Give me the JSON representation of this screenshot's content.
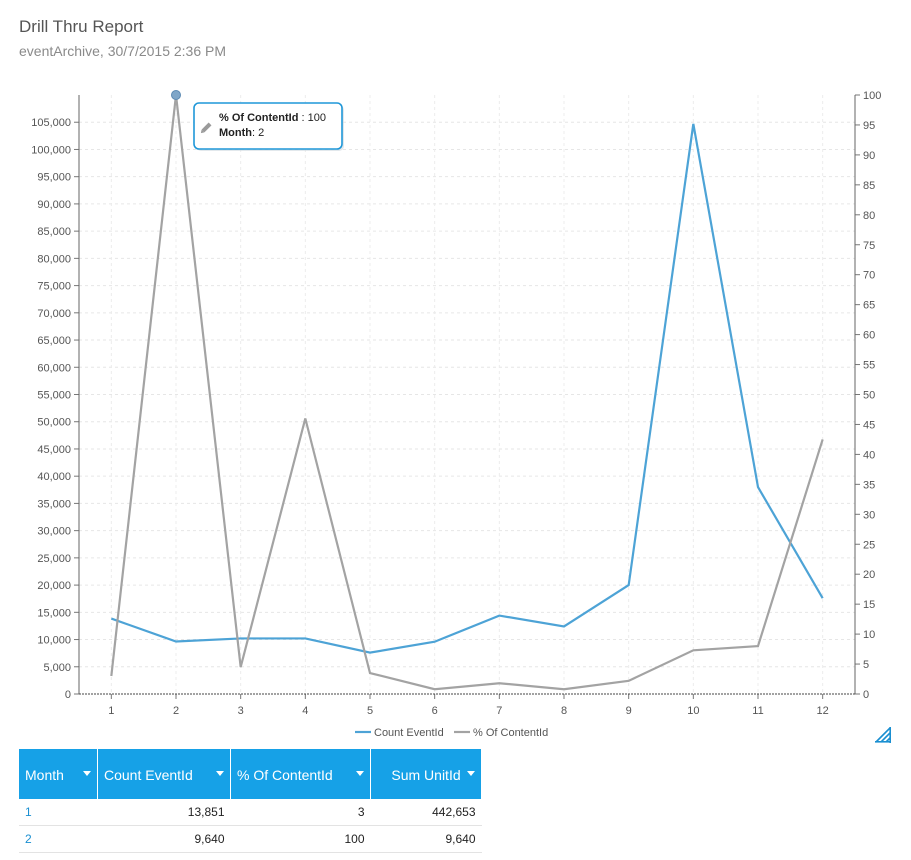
{
  "report": {
    "title": "Drill Thru Report",
    "subtitle": "eventArchive, 30/7/2015 2:36 PM"
  },
  "chart_data": {
    "type": "line",
    "x": [
      "1",
      "2",
      "3",
      "4",
      "5",
      "6",
      "7",
      "8",
      "9",
      "10",
      "11",
      "12"
    ],
    "series": [
      {
        "name": "Count EventId",
        "axis": "left",
        "color": "#4da3d6",
        "values": [
          13851,
          9640,
          10200,
          10200,
          7600,
          9600,
          14400,
          12400,
          20000,
          104700,
          38000,
          17600
        ]
      },
      {
        "name": "% Of ContentId",
        "axis": "right",
        "color": "#a3a3a3",
        "values": [
          3,
          100,
          4.5,
          46,
          3.5,
          0.8,
          1.8,
          0.8,
          2.2,
          7.3,
          8,
          42.5
        ]
      }
    ],
    "y_left": {
      "min": 0,
      "max": 110000,
      "step": 5000,
      "ticks": [
        "0",
        "5,000",
        "10,000",
        "15,000",
        "20,000",
        "25,000",
        "30,000",
        "35,000",
        "40,000",
        "45,000",
        "50,000",
        "55,000",
        "60,000",
        "65,000",
        "70,000",
        "75,000",
        "80,000",
        "85,000",
        "90,000",
        "95,000",
        "100,000",
        "105,000"
      ]
    },
    "y_right": {
      "min": 0,
      "max": 100,
      "step": 5,
      "ticks": [
        "0",
        "5",
        "10",
        "15",
        "20",
        "25",
        "30",
        "35",
        "40",
        "45",
        "50",
        "55",
        "60",
        "65",
        "70",
        "75",
        "80",
        "85",
        "90",
        "95",
        "100"
      ]
    },
    "grid": true,
    "legend": "bottom-center",
    "tooltip": {
      "series_label": "% Of ContentId",
      "value": "100",
      "x_label": "Month",
      "x_value": "2",
      "point_index": 1
    }
  },
  "table": {
    "columns": [
      "Month",
      "Count EventId",
      "% Of ContentId",
      "Sum UnitId"
    ],
    "rows": [
      [
        "1",
        "13,851",
        "3",
        "442,653"
      ],
      [
        "2",
        "9,640",
        "100",
        "9,640"
      ]
    ]
  }
}
